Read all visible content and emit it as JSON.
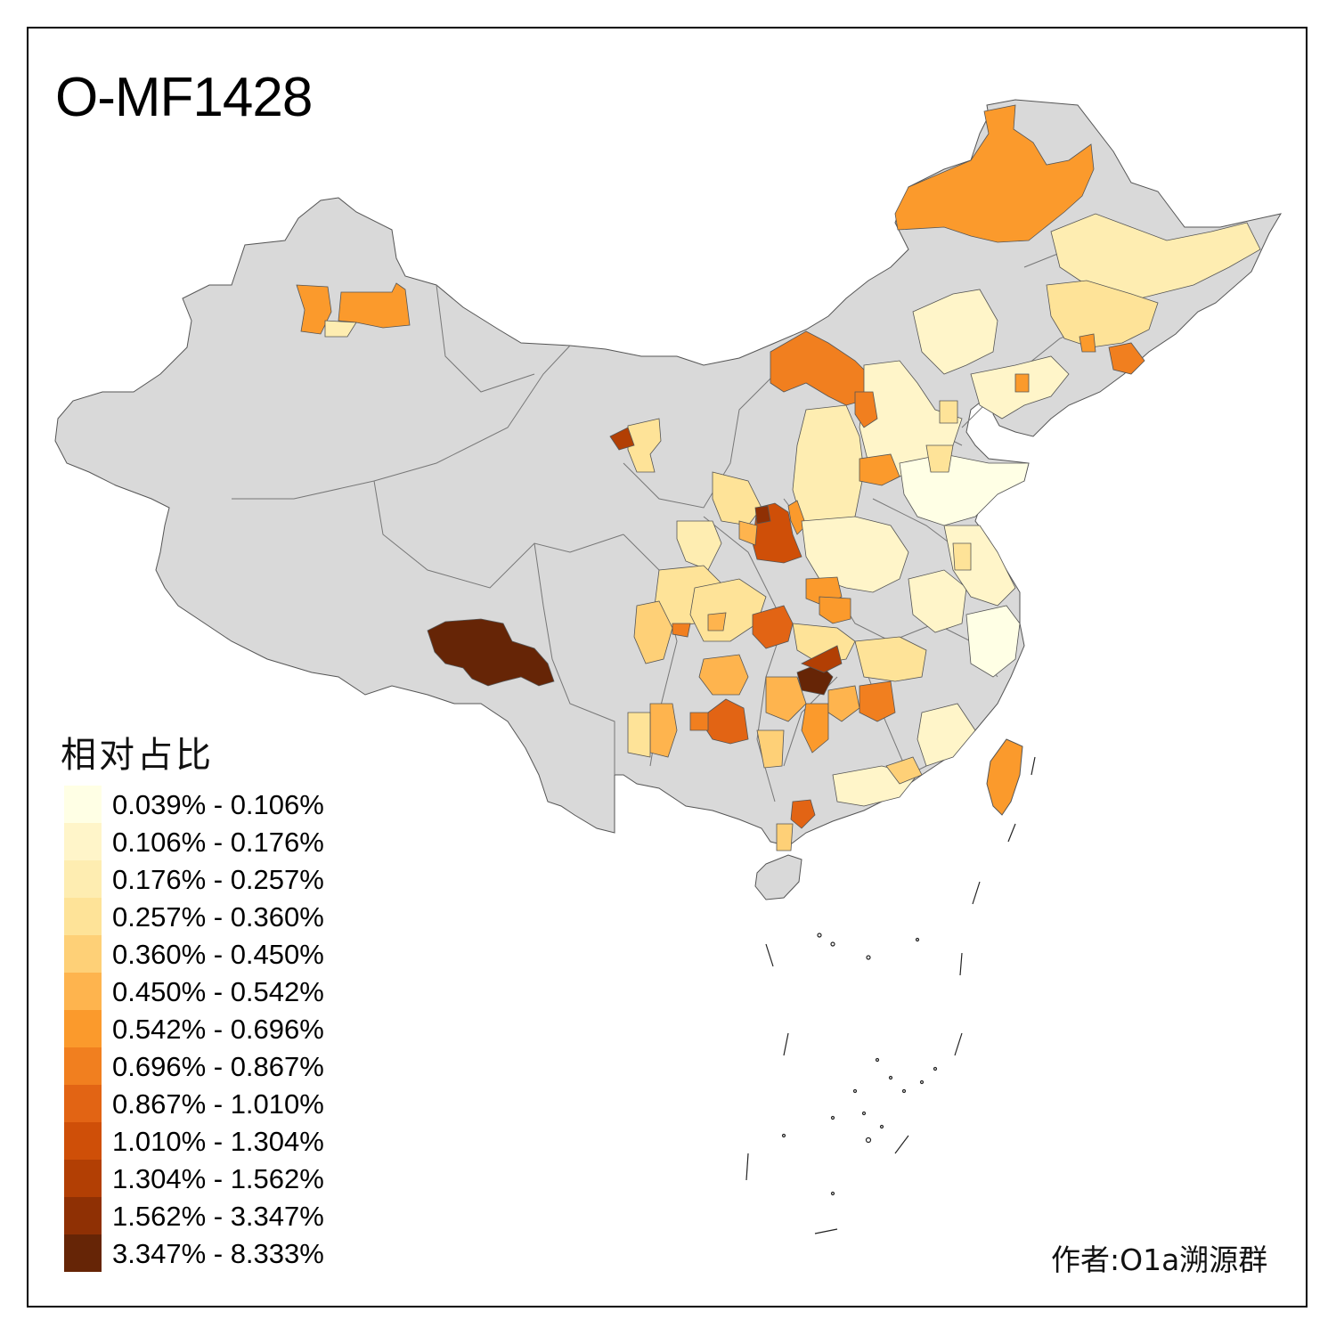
{
  "title": "O-MF1428",
  "legend": {
    "title": "相对占比",
    "items": [
      {
        "label": "0.039% - 0.106%",
        "color": "#ffffe5"
      },
      {
        "label": "0.106% - 0.176%",
        "color": "#fff5c9"
      },
      {
        "label": "0.176% - 0.257%",
        "color": "#feedb1"
      },
      {
        "label": "0.257% - 0.360%",
        "color": "#fee398"
      },
      {
        "label": "0.360% - 0.450%",
        "color": "#fed077"
      },
      {
        "label": "0.450% - 0.542%",
        "color": "#feb44e"
      },
      {
        "label": "0.542% - 0.696%",
        "color": "#fb9a2c"
      },
      {
        "label": "0.696% - 0.867%",
        "color": "#f17f1f"
      },
      {
        "label": "0.867% - 1.010%",
        "color": "#e26414"
      },
      {
        "label": "1.010% - 1.304%",
        "color": "#cf4f08"
      },
      {
        "label": "1.304% - 1.562%",
        "color": "#b23f04"
      },
      {
        "label": "1.562% - 3.347%",
        "color": "#8f3004"
      },
      {
        "label": "3.347% - 8.333%",
        "color": "#662506"
      }
    ]
  },
  "credit": "作者:O1a溯源群",
  "colors": {
    "no_data": "#d9d9d9",
    "border": "#555555"
  }
}
